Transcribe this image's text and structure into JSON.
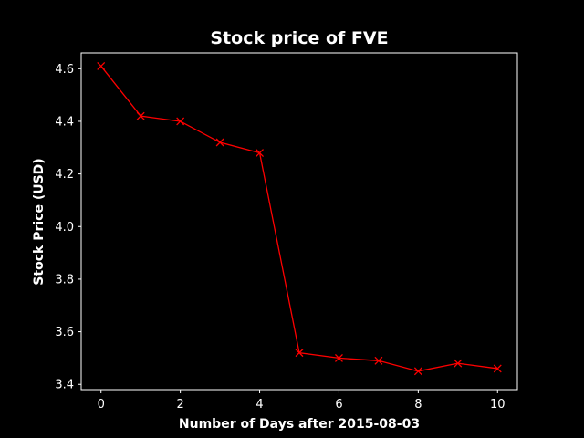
{
  "chart_data": {
    "type": "line",
    "title": "Stock price of FVE",
    "xlabel": "Number of Days after 2015-08-03",
    "ylabel": "Stock Price (USD)",
    "xlim": [
      -0.5,
      10.5
    ],
    "ylim": [
      3.38,
      4.66
    ],
    "xticks": [
      0,
      2,
      4,
      6,
      8,
      10
    ],
    "yticks": [
      3.4,
      3.6,
      3.8,
      4.0,
      4.2,
      4.4,
      4.6
    ],
    "grid": false,
    "series": [
      {
        "color": "#ff0000",
        "marker": "x",
        "x": [
          0,
          1,
          2,
          3,
          4,
          5,
          6,
          7,
          8,
          9,
          10
        ],
        "y": [
          4.61,
          4.42,
          4.4,
          4.32,
          4.28,
          3.52,
          3.5,
          3.49,
          3.45,
          3.48,
          3.46
        ]
      }
    ],
    "colors": {
      "background": "#000000",
      "axes": "#ffffff",
      "text": "#ffffff"
    }
  }
}
